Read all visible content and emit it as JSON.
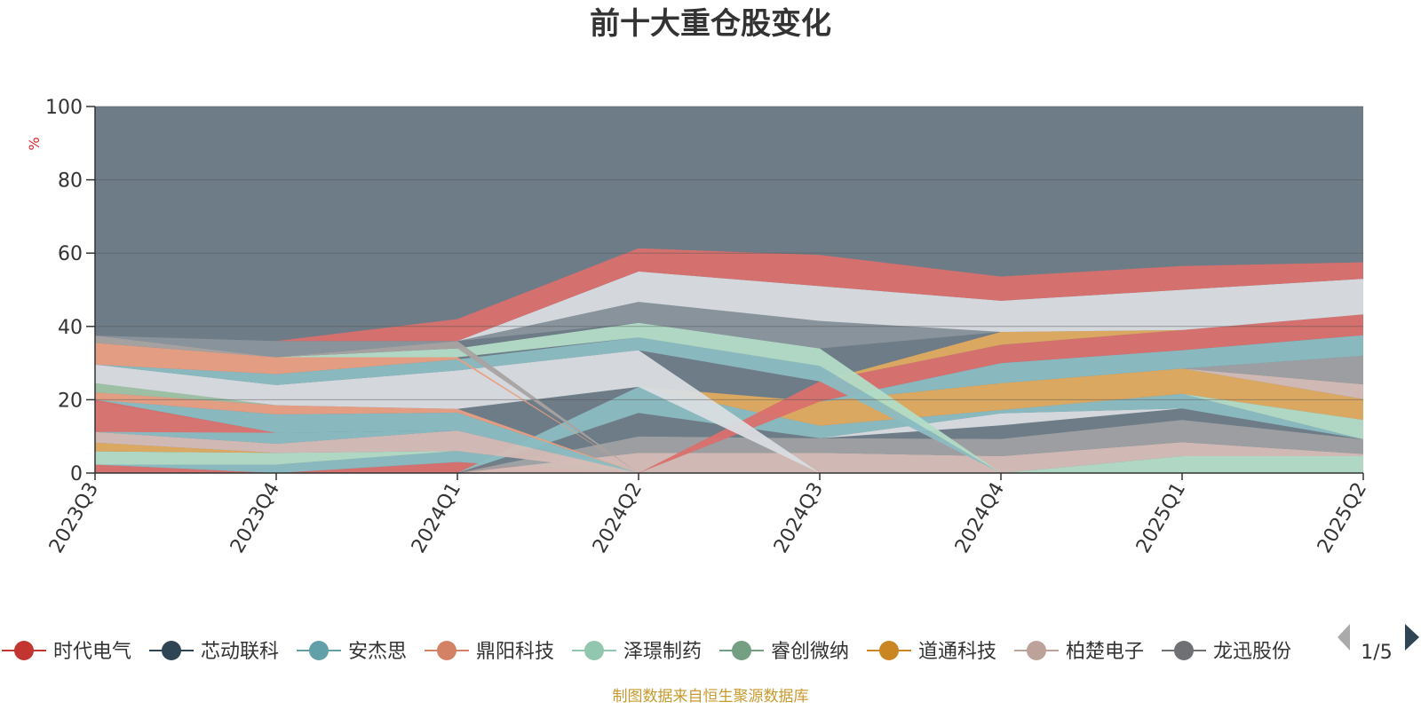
{
  "chart_data": {
    "type": "area",
    "title": "前十大重仓股变化",
    "ylabel": "%",
    "ylim": [
      0,
      100
    ],
    "yticks": [
      "0",
      "20",
      "40",
      "60",
      "80",
      "100"
    ],
    "categories": [
      "2023Q3",
      "2023Q4",
      "2024Q1",
      "2024Q2",
      "2024Q3",
      "2024Q4",
      "2025Q1",
      "2025Q2"
    ],
    "background_color": "#6e7c87",
    "bands": [
      {
        "color": "#d9706d",
        "values": [
          [
            0,
            2.3
          ],
          [
            0,
            0
          ],
          [
            0,
            3
          ],
          [
            0,
            0
          ],
          [
            0,
            0
          ],
          [
            0,
            0
          ],
          [
            0,
            0
          ],
          [
            0,
            0
          ]
        ]
      },
      {
        "color": "#8bbcc2",
        "values": [
          [
            2.3,
            2.3
          ],
          [
            0,
            2.3
          ],
          [
            3,
            6
          ],
          [
            0,
            0
          ],
          [
            0,
            0
          ],
          [
            0,
            0
          ],
          [
            0,
            0
          ],
          [
            0,
            0
          ]
        ]
      },
      {
        "color": "#6e7c87",
        "values": [
          [
            2.3,
            2.3
          ],
          [
            2.3,
            2.3
          ],
          [
            6,
            6
          ],
          [
            0,
            0
          ],
          [
            0,
            0
          ],
          [
            0,
            0
          ],
          [
            0,
            0
          ],
          [
            0,
            0
          ]
        ]
      },
      {
        "color": "#b2dcc6",
        "values": [
          [
            0,
            0
          ],
          [
            0,
            0
          ],
          [
            0,
            0
          ],
          [
            0,
            0
          ],
          [
            0,
            0
          ],
          [
            0,
            0
          ],
          [
            0,
            4.6
          ],
          [
            0,
            4.6
          ]
        ]
      },
      {
        "color": "#d5bdb7",
        "values": [
          [
            0,
            0
          ],
          [
            0,
            0
          ],
          [
            0,
            0
          ],
          [
            0,
            5.5
          ],
          [
            0,
            5.5
          ],
          [
            0,
            4.6
          ],
          [
            4.6,
            8.4
          ],
          [
            4.6,
            5.2
          ]
        ]
      },
      {
        "color": "#9fa0a2",
        "values": [
          [
            0,
            0
          ],
          [
            0,
            0
          ],
          [
            0,
            0
          ],
          [
            5.5,
            10
          ],
          [
            5.5,
            9.5
          ],
          [
            4.6,
            9.3
          ],
          [
            8.4,
            14.5
          ],
          [
            5.2,
            9.2
          ]
        ]
      },
      {
        "color": "#6e7c87",
        "values": [
          [
            0,
            0
          ],
          [
            0,
            0
          ],
          [
            0,
            0
          ],
          [
            10,
            16.4
          ],
          [
            9.5,
            9.5
          ],
          [
            9.3,
            13
          ],
          [
            14.5,
            17.6
          ],
          [
            9.2,
            9.2
          ]
        ]
      },
      {
        "color": "#d9dde2",
        "values": [
          [
            0,
            0
          ],
          [
            0,
            0
          ],
          [
            0,
            0
          ],
          [
            0,
            0
          ],
          [
            9.5,
            9.5
          ],
          [
            13,
            16.3
          ],
          [
            17.6,
            17.6
          ],
          [
            9.2,
            9.2
          ]
        ]
      },
      {
        "color": "#8bbcc2",
        "values": [
          [
            0,
            0
          ],
          [
            0,
            0
          ],
          [
            0,
            0
          ],
          [
            16.4,
            23.5
          ],
          [
            9.5,
            12.9
          ],
          [
            16.3,
            17.2
          ],
          [
            17.6,
            21.6
          ],
          [
            9.2,
            9.2
          ]
        ]
      },
      {
        "color": "#b2dcc6",
        "values": [
          [
            2.3,
            5.9
          ],
          [
            2.3,
            5.5
          ],
          [
            6,
            6
          ],
          [
            0,
            0
          ],
          [
            0,
            0
          ],
          [
            0,
            0
          ],
          [
            21.6,
            21.6
          ],
          [
            9.2,
            14.5
          ]
        ]
      },
      {
        "color": "#e0ab60",
        "values": [
          [
            5.9,
            8.3
          ],
          [
            5.5,
            5.5
          ],
          [
            6,
            6
          ],
          [
            23.5,
            23.5
          ],
          [
            12.9,
            19.5
          ],
          [
            17.2,
            24.5
          ],
          [
            21.6,
            28.5
          ],
          [
            14.5,
            20.2
          ]
        ]
      },
      {
        "color": "#d5bdb7",
        "values": [
          [
            8.3,
            11.2
          ],
          [
            5.5,
            8
          ],
          [
            6,
            11.6
          ],
          [
            0,
            0
          ],
          [
            0,
            0
          ],
          [
            0,
            0
          ],
          [
            28.5,
            28.5
          ],
          [
            20.2,
            24.2
          ]
        ]
      },
      {
        "color": "#9fa0a2",
        "values": [
          [
            0,
            0
          ],
          [
            0,
            0
          ],
          [
            0,
            0
          ],
          [
            0,
            0
          ],
          [
            0,
            0
          ],
          [
            0,
            0
          ],
          [
            28.5,
            28.5
          ],
          [
            24.2,
            32
          ]
        ]
      },
      {
        "color": "#8bbcc2",
        "values": [
          [
            11.2,
            19.5
          ],
          [
            8,
            11
          ],
          [
            11.6,
            11.6
          ],
          [
            0,
            0
          ],
          [
            19.5,
            19.5
          ],
          [
            24.5,
            30
          ],
          [
            28.5,
            33.5
          ],
          [
            32,
            37.6
          ]
        ]
      },
      {
        "color": "#d9706d",
        "values": [
          [
            19.5,
            19.5
          ],
          [
            11,
            11
          ],
          [
            11.6,
            11.6
          ],
          [
            0,
            0
          ],
          [
            19.5,
            25
          ],
          [
            30,
            35
          ],
          [
            33.5,
            39
          ],
          [
            37.6,
            43.3
          ]
        ]
      },
      {
        "color": "#e0ab60",
        "values": [
          [
            0,
            0
          ],
          [
            0,
            0
          ],
          [
            0,
            0
          ],
          [
            0,
            0
          ],
          [
            25,
            25
          ],
          [
            35,
            38.5
          ],
          [
            39,
            39
          ],
          [
            43.3,
            43.3
          ]
        ]
      },
      {
        "color": "#d9706d",
        "values": [
          [
            11.2,
            20
          ],
          [
            11,
            11
          ],
          [
            0,
            0
          ],
          [
            0,
            0
          ],
          [
            0,
            0
          ],
          [
            0,
            0
          ],
          [
            0,
            0
          ],
          [
            0,
            0
          ]
        ]
      },
      {
        "color": "#8bbcc2",
        "values": [
          [
            20,
            20
          ],
          [
            11,
            16
          ],
          [
            11.6,
            16.5
          ],
          [
            0,
            0
          ],
          [
            0,
            0
          ],
          [
            0,
            0
          ],
          [
            0,
            0
          ],
          [
            0,
            0
          ]
        ]
      },
      {
        "color": "#e89f82",
        "values": [
          [
            20,
            22
          ],
          [
            16,
            18.5
          ],
          [
            16.5,
            17.5
          ],
          [
            0,
            0
          ],
          [
            0,
            0
          ],
          [
            0,
            0
          ],
          [
            0,
            0
          ],
          [
            0,
            0
          ]
        ]
      },
      {
        "color": "#9fc4a7",
        "values": [
          [
            22,
            24.5
          ],
          [
            18.5,
            18.5
          ],
          [
            17.5,
            17.5
          ],
          [
            0,
            0
          ],
          [
            0,
            0
          ],
          [
            0,
            0
          ],
          [
            0,
            0
          ],
          [
            0,
            0
          ]
        ]
      },
      {
        "color": "#d9dde2",
        "values": [
          [
            24.5,
            29.6
          ],
          [
            18.5,
            24
          ],
          [
            17.5,
            28
          ],
          [
            23.5,
            33.5
          ],
          [
            0,
            0
          ],
          [
            0,
            0
          ],
          [
            0,
            0
          ],
          [
            0,
            0
          ]
        ]
      },
      {
        "color": "#8bbcc2",
        "values": [
          [
            29.6,
            29.6
          ],
          [
            24,
            27
          ],
          [
            28,
            31
          ],
          [
            33.5,
            37
          ],
          [
            25,
            29.2
          ],
          [
            0,
            0
          ],
          [
            0,
            0
          ],
          [
            0,
            0
          ]
        ]
      },
      {
        "color": "#e89f82",
        "values": [
          [
            29.6,
            35.5
          ],
          [
            27,
            31.6
          ],
          [
            31,
            31.6
          ],
          [
            0,
            0
          ],
          [
            0,
            0
          ],
          [
            0,
            0
          ],
          [
            0,
            0
          ],
          [
            0,
            0
          ]
        ]
      },
      {
        "color": "#b2dcc6",
        "values": [
          [
            0,
            0
          ],
          [
            31.6,
            31.6
          ],
          [
            31.6,
            34
          ],
          [
            37,
            41
          ],
          [
            29.2,
            34
          ],
          [
            0,
            0
          ],
          [
            0,
            0
          ],
          [
            0,
            0
          ]
        ]
      },
      {
        "color": "#a9a3a2",
        "values": [
          [
            35.5,
            37.5
          ],
          [
            31.6,
            31.6
          ],
          [
            34,
            36
          ],
          [
            0,
            0
          ],
          [
            0,
            0
          ],
          [
            0,
            0
          ],
          [
            0,
            0
          ],
          [
            0,
            0
          ]
        ]
      },
      {
        "color": "#8a959d",
        "values": [
          [
            37.5,
            37.5
          ],
          [
            31.6,
            36
          ],
          [
            36,
            36
          ],
          [
            41,
            46.7
          ],
          [
            34,
            41.5
          ],
          [
            38.5,
            38.5
          ],
          [
            0,
            0
          ],
          [
            0,
            0
          ]
        ]
      },
      {
        "color": "#d9dde2",
        "values": [
          [
            0,
            0
          ],
          [
            0,
            0
          ],
          [
            36,
            36
          ],
          [
            46.7,
            55
          ],
          [
            41.5,
            51
          ],
          [
            38.5,
            47
          ],
          [
            39,
            50
          ],
          [
            43.3,
            53
          ]
        ]
      },
      {
        "color": "#d9706d",
        "values": [
          [
            0,
            0
          ],
          [
            36,
            36
          ],
          [
            36,
            42
          ],
          [
            55,
            61.3
          ],
          [
            51,
            59.5
          ],
          [
            47,
            53.6
          ],
          [
            50,
            56.5
          ],
          [
            53,
            57.5
          ]
        ]
      }
    ],
    "legend": {
      "position": "bottom",
      "page": "1/5",
      "items": [
        {
          "name": "时代电气",
          "color": "#c23531"
        },
        {
          "name": "芯动联科",
          "color": "#2f4554"
        },
        {
          "name": "安杰思",
          "color": "#61a0a8"
        },
        {
          "name": "鼎阳科技",
          "color": "#d48265"
        },
        {
          "name": "泽璟制药",
          "color": "#91c7ae"
        },
        {
          "name": "睿创微纳",
          "color": "#749f83"
        },
        {
          "name": "道通科技",
          "color": "#ca8622"
        },
        {
          "name": "柏楚电子",
          "color": "#bda29a"
        },
        {
          "name": "龙迅股份",
          "color": "#6e7074"
        }
      ]
    },
    "source": "制图数据来自恒生聚源数据库"
  }
}
